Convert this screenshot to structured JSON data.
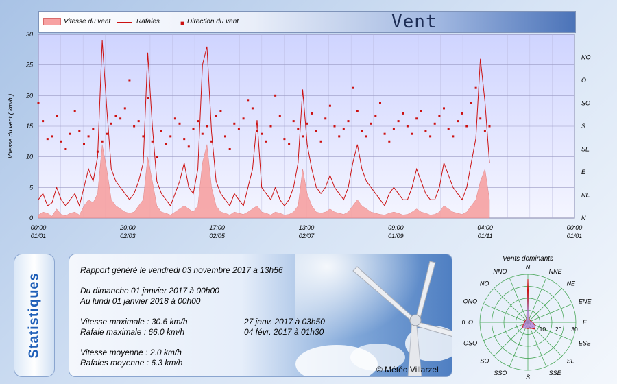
{
  "header": {
    "title": "Vent",
    "legend": {
      "area": "Vitesse du vent",
      "line": "Rafales",
      "dots": "Direction du vent"
    }
  },
  "colors": {
    "area_fill": "#f7a2a2",
    "line": "#cc1111",
    "dots": "#cc1111",
    "plot_bg": "#cfd4ff"
  },
  "chart_data": [
    {
      "type": "area+line+scatter",
      "ylabel": "Vitesse du vent  ( km/h )",
      "ylim": [
        0,
        30
      ],
      "yticks": [
        0,
        5,
        10,
        15,
        20,
        25,
        30
      ],
      "y2ticks": [
        "N",
        "NE",
        "E",
        "SE",
        "S",
        "SO",
        "O",
        "NO"
      ],
      "xticks": [
        {
          "time": "00:00",
          "date": "01/01"
        },
        {
          "time": "20:00",
          "date": "02/03"
        },
        {
          "time": "17:00",
          "date": "02/05"
        },
        {
          "time": "13:00",
          "date": "02/07"
        },
        {
          "time": "09:00",
          "date": "01/09"
        },
        {
          "time": "04:00",
          "date": "01/11"
        },
        {
          "time": "00:00",
          "date": "01/01"
        }
      ],
      "grid": true,
      "series": [
        {
          "name": "Vitesse du vent",
          "kind": "area",
          "values": [
            0.5,
            1,
            0.8,
            0.3,
            1.5,
            0.6,
            0.4,
            0.8,
            1,
            0.5,
            2,
            3,
            2.5,
            4,
            12,
            8,
            3,
            2,
            1.5,
            1,
            0.8,
            1,
            2,
            3,
            10,
            6,
            2,
            1,
            0.8,
            0.5,
            1,
            1.5,
            2,
            1.5,
            1,
            2,
            9,
            12,
            5,
            2,
            1,
            0.8,
            0.5,
            1,
            0.8,
            0.6,
            1,
            1.5,
            2,
            1,
            0.8,
            0.5,
            1,
            0.8,
            0.5,
            0.6,
            1,
            2,
            8,
            4,
            2,
            1,
            0.8,
            1,
            1.5,
            1,
            0.8,
            0.6,
            1,
            2,
            3,
            2,
            1.5,
            1,
            0.8,
            0.6,
            0.5,
            0.8,
            1,
            0.8,
            0.5,
            0.6,
            1,
            1.5,
            1,
            0.8,
            0.5,
            0.6,
            1,
            2,
            1.5,
            1,
            0.8,
            0.6,
            1,
            2,
            3,
            6,
            8,
            3
          ]
        },
        {
          "name": "Rafales",
          "kind": "line",
          "values": [
            3,
            4,
            2,
            2.5,
            5,
            3,
            2,
            3,
            4,
            2,
            5,
            8,
            6,
            10,
            29,
            18,
            8,
            6,
            5,
            4,
            3,
            4,
            6,
            9,
            27,
            15,
            6,
            4,
            3,
            2,
            4,
            6,
            9,
            5,
            4,
            8,
            25,
            28,
            14,
            6,
            4,
            3,
            2,
            4,
            3,
            2,
            5,
            8,
            16,
            5,
            4,
            3,
            5,
            3,
            2,
            3,
            5,
            9,
            21,
            12,
            8,
            5,
            4,
            5,
            7,
            5,
            4,
            3,
            5,
            9,
            12,
            8,
            6,
            5,
            4,
            3,
            2,
            4,
            5,
            4,
            3,
            3,
            5,
            8,
            6,
            4,
            3,
            3,
            5,
            9,
            7,
            5,
            4,
            3,
            5,
            9,
            13,
            26,
            19,
            9
          ]
        },
        {
          "name": "Direction du vent",
          "kind": "dots",
          "values": [
            225,
            190,
            155,
            160,
            200,
            150,
            135,
            165,
            210,
            170,
            145,
            160,
            175,
            130,
            150,
            165,
            185,
            200,
            195,
            215,
            270,
            180,
            190,
            160,
            235,
            150,
            120,
            170,
            145,
            160,
            195,
            185,
            155,
            140,
            175,
            190,
            165,
            180,
            150,
            200,
            210,
            160,
            135,
            185,
            175,
            195,
            230,
            215,
            170,
            165,
            150,
            180,
            240,
            200,
            155,
            145,
            190,
            175,
            160,
            185,
            205,
            170,
            150,
            195,
            220,
            180,
            160,
            175,
            190,
            255,
            210,
            170,
            160,
            185,
            200,
            225,
            165,
            150,
            175,
            190,
            205,
            180,
            165,
            195,
            210,
            170,
            160,
            185,
            200,
            215,
            175,
            160,
            190,
            205,
            180,
            225,
            255,
            195,
            170,
            180
          ]
        }
      ]
    },
    {
      "type": "radar",
      "title": "Vents dominants",
      "categories": [
        "N",
        "NNE",
        "NE",
        "ENE",
        "E",
        "ESE",
        "SE",
        "SSE",
        "S",
        "SSO",
        "SO",
        "OSO",
        "O",
        "ONO",
        "NO",
        "NNO"
      ],
      "ticks": [
        0,
        10,
        20,
        30
      ],
      "rlim": [
        0,
        30
      ],
      "series": [
        {
          "name": "Vitesse",
          "values": [
            27,
            2,
            2,
            2,
            3,
            5,
            6,
            4,
            4,
            4,
            5,
            3,
            2,
            2,
            2,
            2
          ]
        }
      ]
    }
  ],
  "stats": {
    "tab_label": "Statistiques",
    "report_line": "Rapport généré le vendredi 03 novembre 2017 à 13h56",
    "period_from": "Du dimanche 01 janvier 2017 à 00h00",
    "period_to": "Au lundi 01 janvier 2018 à 00h00",
    "vmax_label": "Vitesse maximale : 30.6",
    "vmax_unit": "km/h",
    "vmax_date": "27 janv. 2017 à 03h50",
    "gust_max_label": "Rafale maximale : 66.0",
    "gust_max_unit": "km/h",
    "gust_max_date": "04 févr. 2017 à 01h30",
    "vavg_label": "Vitesse moyenne : 2.0",
    "vavg_unit": "km/h",
    "gust_avg_label": "Rafales moyenne : 6.3",
    "gust_avg_unit": "km/h",
    "copyright": "© Météo Villarzel"
  }
}
